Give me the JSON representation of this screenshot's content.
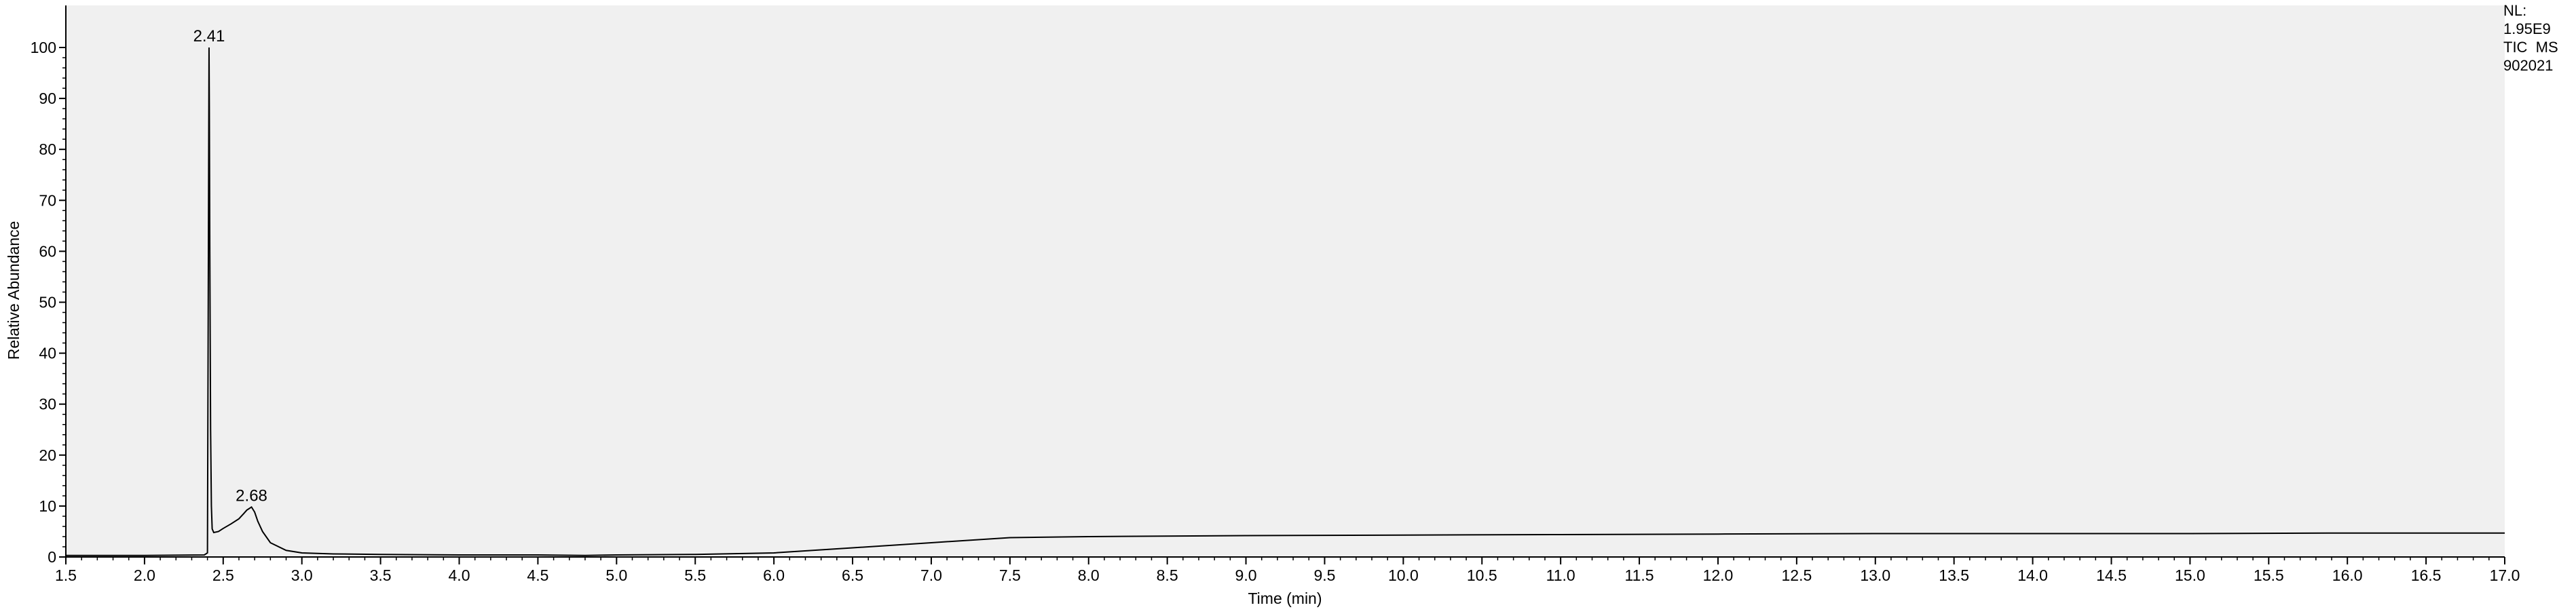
{
  "chart_data": {
    "type": "line",
    "title": "",
    "xlabel": "Time (min)",
    "ylabel": "Relative Abundance",
    "xlim": [
      1.5,
      17.0
    ],
    "ylim": [
      0,
      100
    ],
    "x_ticks": [
      "1.5",
      "2.0",
      "2.5",
      "3.0",
      "3.5",
      "4.0",
      "4.5",
      "5.0",
      "5.5",
      "6.0",
      "6.5",
      "7.0",
      "7.5",
      "8.0",
      "8.5",
      "9.0",
      "9.5",
      "10.0",
      "10.5",
      "11.0",
      "11.5",
      "12.0",
      "12.5",
      "13.0",
      "13.5",
      "14.0",
      "14.5",
      "15.0",
      "15.5",
      "16.0",
      "16.5",
      "17.0"
    ],
    "y_ticks": [
      "0",
      "10",
      "20",
      "30",
      "40",
      "50",
      "60",
      "70",
      "80",
      "90",
      "100"
    ],
    "grid": false,
    "legend": "none",
    "background_color": "#f0f0f0",
    "line_color": "#000000",
    "peak_labels": [
      {
        "x": 2.41,
        "y": 100,
        "text": "2.41"
      },
      {
        "x": 2.68,
        "y": 9.8,
        "text": "2.68"
      }
    ],
    "series": [
      {
        "x": [
          1.5,
          2.0,
          2.38,
          2.4,
          2.405,
          2.41,
          2.412,
          2.415,
          2.42,
          2.425,
          2.43,
          2.44,
          2.47,
          2.5,
          2.55,
          2.6,
          2.63,
          2.65,
          2.68,
          2.7,
          2.72,
          2.75,
          2.8,
          2.9,
          3.0,
          3.2,
          3.5,
          4.0,
          4.5,
          4.8,
          5.0,
          5.5,
          6.0,
          6.5,
          7.0,
          7.3,
          7.5,
          8.0,
          9.0,
          10.0,
          11.0,
          12.0,
          13.0,
          14.0,
          15.0,
          16.0,
          17.0
        ],
        "y": [
          0.3,
          0.3,
          0.4,
          0.8,
          50,
          100,
          88,
          60,
          25,
          10,
          5.5,
          4.8,
          5.0,
          5.6,
          6.5,
          7.5,
          8.5,
          9.2,
          9.8,
          8.8,
          7.0,
          5.0,
          2.8,
          1.3,
          0.8,
          0.6,
          0.5,
          0.4,
          0.4,
          0.3,
          0.4,
          0.5,
          0.8,
          1.8,
          2.8,
          3.4,
          3.8,
          4.0,
          4.2,
          4.3,
          4.4,
          4.5,
          4.6,
          4.6,
          4.6,
          4.7,
          4.7
        ]
      }
    ]
  },
  "info_box": {
    "line1": "NL:",
    "line2": "1.95E9",
    "line3": "TIC  MS",
    "line4": "902021"
  }
}
